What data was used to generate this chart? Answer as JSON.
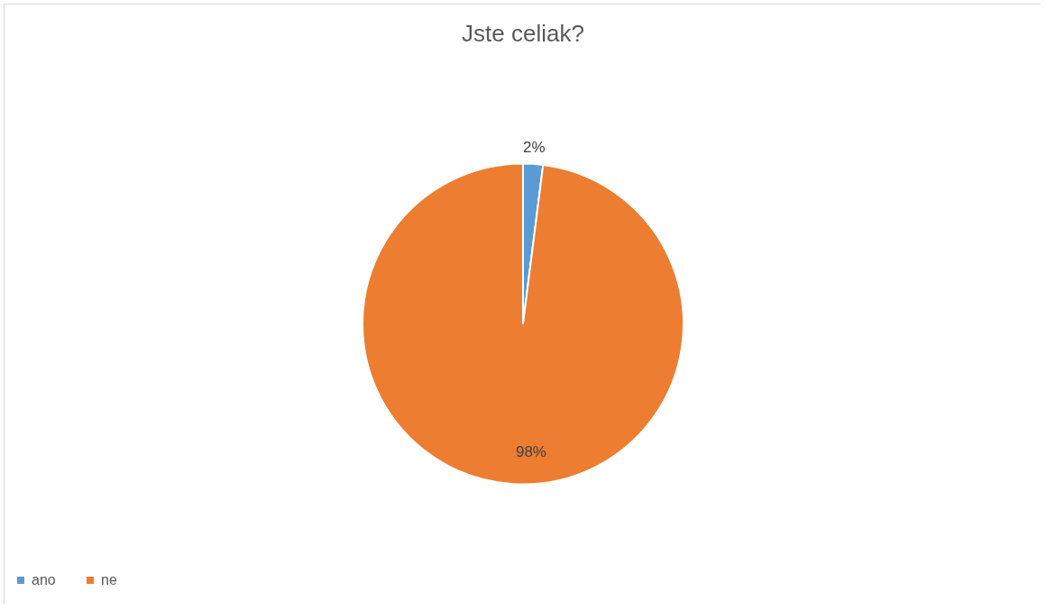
{
  "chart_data": {
    "type": "pie",
    "title": "Jste celiak?",
    "categories": [
      "ano",
      "ne"
    ],
    "values": [
      2,
      98
    ],
    "colors": [
      "#5b9bd5",
      "#ed7d31"
    ],
    "value_labels": [
      "2%",
      "98%"
    ],
    "legend": "bottom"
  }
}
